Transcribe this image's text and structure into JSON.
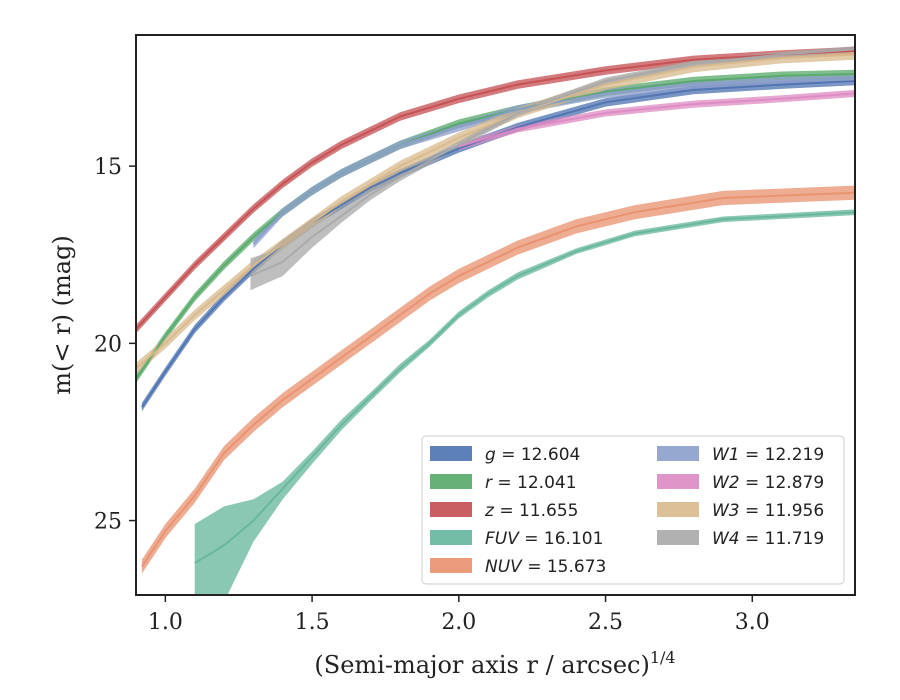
{
  "chart_data": {
    "type": "line",
    "title": "",
    "xlabel": "(Semi-major axis r / arcsec)",
    "xlabel_exponent": "1/4",
    "ylabel": "m(< r) (mag)",
    "xlim": [
      0.9,
      3.35
    ],
    "ylim": [
      27.1,
      11.3
    ],
    "y_inverted": true,
    "grid": false,
    "xticks": [
      1.0,
      1.5,
      2.0,
      2.5,
      3.0
    ],
    "xtick_labels": [
      "1.0",
      "1.5",
      "2.0",
      "2.5",
      "3.0"
    ],
    "yticks": [
      15,
      20,
      25
    ],
    "ytick_labels": [
      "15",
      "20",
      "25"
    ],
    "legend_position": "lower-right",
    "legend_columns": 2,
    "series": [
      {
        "name": "g",
        "value": "12.604",
        "color": "#4c72b0",
        "x": [
          0.92,
          1.0,
          1.1,
          1.2,
          1.3,
          1.4,
          1.5,
          1.6,
          1.7,
          1.8,
          2.0,
          2.2,
          2.5,
          2.8,
          3.1,
          3.35
        ],
        "y": [
          21.8,
          20.8,
          19.6,
          18.7,
          17.9,
          17.2,
          16.6,
          16.1,
          15.6,
          15.2,
          14.5,
          13.9,
          13.2,
          12.85,
          12.7,
          12.6
        ],
        "band": 0.12
      },
      {
        "name": "r",
        "value": "12.041",
        "color": "#55a868",
        "x": [
          0.9,
          1.0,
          1.1,
          1.2,
          1.3,
          1.4,
          1.5,
          1.6,
          1.7,
          1.8,
          2.0,
          2.2,
          2.5,
          2.8,
          3.1,
          3.35
        ],
        "y": [
          21.0,
          19.8,
          18.7,
          17.8,
          17.0,
          16.3,
          15.7,
          15.2,
          14.8,
          14.4,
          13.8,
          13.4,
          12.9,
          12.6,
          12.45,
          12.4
        ],
        "band": 0.12
      },
      {
        "name": "z",
        "value": "11.655",
        "color": "#c44e52",
        "x": [
          0.9,
          1.0,
          1.1,
          1.2,
          1.3,
          1.4,
          1.5,
          1.6,
          1.7,
          1.8,
          2.0,
          2.2,
          2.5,
          2.8,
          3.1,
          3.35
        ],
        "y": [
          19.6,
          18.7,
          17.8,
          17.0,
          16.2,
          15.5,
          14.9,
          14.4,
          14.0,
          13.6,
          13.1,
          12.7,
          12.3,
          12.0,
          11.85,
          11.75
        ],
        "band": 0.12
      },
      {
        "name": "FUV",
        "value": "16.101",
        "color": "#64b59b",
        "x": [
          1.1,
          1.2,
          1.3,
          1.4,
          1.5,
          1.6,
          1.7,
          1.8,
          1.9,
          2.0,
          2.1,
          2.2,
          2.4,
          2.6,
          2.9,
          3.35
        ],
        "y": [
          26.2,
          25.7,
          25.0,
          24.1,
          23.2,
          22.3,
          21.5,
          20.7,
          20.0,
          19.2,
          18.6,
          18.1,
          17.4,
          16.9,
          16.5,
          16.3
        ],
        "band_lo": [
          1.1,
          1.1,
          0.6,
          0.2,
          0.15,
          0.15,
          0.12,
          0.12,
          0.1,
          0.1,
          0.1,
          0.1,
          0.08,
          0.08,
          0.08,
          0.08
        ],
        "band_hi": [
          1.1,
          1.6,
          0.6,
          0.3,
          0.2,
          0.15,
          0.12,
          0.12,
          0.1,
          0.1,
          0.1,
          0.1,
          0.08,
          0.08,
          0.08,
          0.08
        ]
      },
      {
        "name": "NUV",
        "value": "15.673",
        "color": "#e8906e",
        "x": [
          0.92,
          1.0,
          1.1,
          1.2,
          1.3,
          1.4,
          1.5,
          1.6,
          1.7,
          1.8,
          1.9,
          2.0,
          2.2,
          2.4,
          2.6,
          2.9,
          3.35
        ],
        "y": [
          26.3,
          25.3,
          24.3,
          23.1,
          22.3,
          21.6,
          21.0,
          20.4,
          19.8,
          19.2,
          18.6,
          18.1,
          17.3,
          16.7,
          16.3,
          15.9,
          15.75
        ],
        "band": 0.2
      },
      {
        "name": "W1",
        "value": "12.219",
        "color": "#8c9ecb",
        "x": [
          1.3,
          1.4,
          1.5,
          1.6,
          1.7,
          1.8,
          2.0,
          2.2,
          2.5,
          2.8,
          3.1,
          3.35
        ],
        "y": [
          17.2,
          16.3,
          15.7,
          15.2,
          14.8,
          14.4,
          13.9,
          13.4,
          12.95,
          12.7,
          12.6,
          12.55
        ],
        "band": 0.12
      },
      {
        "name": "W2",
        "value": "12.879",
        "color": "#dd8ac2",
        "x": [
          2.0,
          2.2,
          2.5,
          2.8,
          3.1,
          3.35
        ],
        "y": [
          14.45,
          13.95,
          13.5,
          13.25,
          13.1,
          12.95
        ],
        "band": 0.1
      },
      {
        "name": "W3",
        "value": "11.956",
        "color": "#d8b98c",
        "x": [
          0.9,
          1.0,
          1.1,
          1.2,
          1.3,
          1.4,
          1.5,
          1.6,
          1.7,
          1.8,
          2.0,
          2.2,
          2.5,
          2.8,
          3.1,
          3.35
        ],
        "y": [
          20.7,
          20.0,
          19.2,
          18.5,
          17.8,
          17.2,
          16.6,
          16.0,
          15.5,
          15.0,
          14.2,
          13.5,
          12.7,
          12.2,
          11.95,
          11.85
        ],
        "band": 0.15
      },
      {
        "name": "W4",
        "value": "11.719",
        "color": "#a8a8a8",
        "x": [
          1.29,
          1.4,
          1.5,
          1.6,
          1.7,
          1.8,
          2.0,
          2.2,
          2.5,
          2.8,
          3.1,
          3.35
        ],
        "y": [
          18.1,
          17.7,
          17.0,
          16.4,
          15.8,
          15.3,
          14.4,
          13.5,
          12.6,
          12.1,
          11.85,
          11.7
        ],
        "band_lo": [
          0.5,
          0.4,
          0.3,
          0.2,
          0.15,
          0.12,
          0.1,
          0.1,
          0.1,
          0.08,
          0.08,
          0.08
        ],
        "band_hi": [
          0.4,
          0.4,
          0.3,
          0.2,
          0.15,
          0.12,
          0.1,
          0.1,
          0.1,
          0.08,
          0.08,
          0.08
        ]
      }
    ],
    "legend_order": [
      [
        "g",
        "r",
        "z",
        "FUV",
        "NUV"
      ],
      [
        "W1",
        "W2",
        "W3",
        "W4"
      ]
    ]
  }
}
